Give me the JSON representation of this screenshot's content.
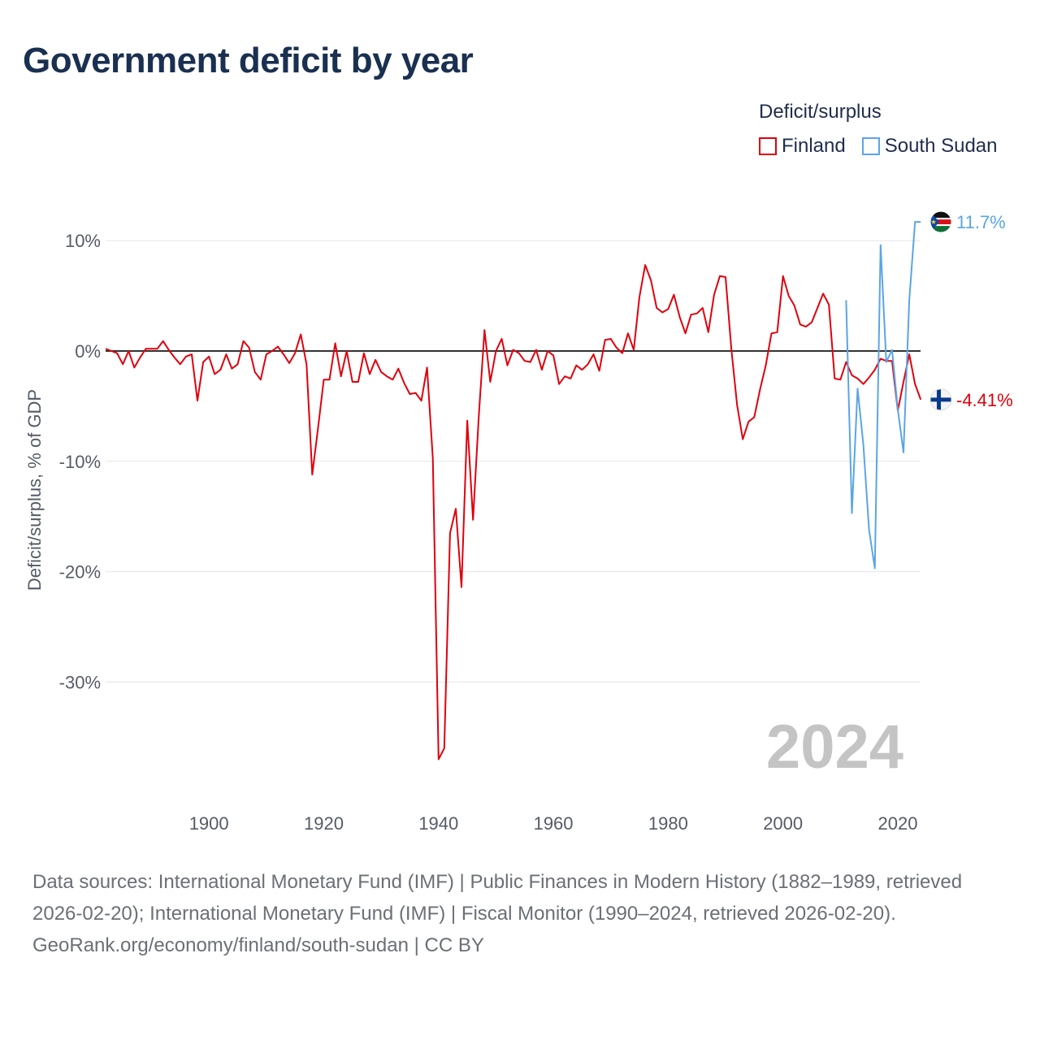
{
  "title": "Government deficit by year",
  "legend": {
    "title": "Deficit/surplus",
    "items": [
      {
        "label": "Finland",
        "color": "#e0000d"
      },
      {
        "label": "South Sudan",
        "color": "#5aa5e6"
      }
    ]
  },
  "footer": {
    "sources": "Data sources: International Monetary Fund (IMF) | Public Finances in Modern History (1882–1989, retrieved 2026-02-20); International Monetary Fund (IMF) | Fiscal Monitor (1990–2024, retrieved 2026-02-20).",
    "credit": "GeoRank.org/economy/finland/south-sudan | CC BY"
  },
  "chart_data": {
    "type": "line",
    "title": "Government deficit by year",
    "ylabel": "Deficit/surplus, % of GDP",
    "xlabel": "",
    "current_year": "2024",
    "xlim": [
      1882,
      2024
    ],
    "ylim": [
      -38,
      13
    ],
    "xticks": [
      1900,
      1920,
      1940,
      1960,
      1980,
      2000,
      2020
    ],
    "xtick_labels": [
      "1900",
      "1920",
      "1940",
      "1960",
      "1980",
      "2000",
      "2020"
    ],
    "yticks": [
      10,
      0,
      -10,
      -20,
      -30
    ],
    "ytick_labels": [
      "10%",
      "0%",
      "-10%",
      "-20%",
      "-30%"
    ],
    "zero_line": true,
    "series": [
      {
        "name": "Finland",
        "color": "#e0000d",
        "end_label": "-4.41%",
        "x": [
          1882,
          1883,
          1884,
          1885,
          1886,
          1887,
          1888,
          1889,
          1890,
          1891,
          1892,
          1893,
          1894,
          1895,
          1896,
          1897,
          1898,
          1899,
          1900,
          1901,
          1902,
          1903,
          1904,
          1905,
          1906,
          1907,
          1908,
          1909,
          1910,
          1911,
          1912,
          1913,
          1914,
          1915,
          1916,
          1917,
          1918,
          1919,
          1920,
          1921,
          1922,
          1923,
          1924,
          1925,
          1926,
          1927,
          1928,
          1929,
          1930,
          1931,
          1932,
          1933,
          1934,
          1935,
          1936,
          1937,
          1938,
          1939,
          1940,
          1941,
          1942,
          1943,
          1944,
          1945,
          1946,
          1947,
          1948,
          1949,
          1950,
          1951,
          1952,
          1953,
          1954,
          1955,
          1956,
          1957,
          1958,
          1959,
          1960,
          1961,
          1962,
          1963,
          1964,
          1965,
          1966,
          1967,
          1968,
          1969,
          1970,
          1971,
          1972,
          1973,
          1974,
          1975,
          1976,
          1977,
          1978,
          1979,
          1980,
          1981,
          1982,
          1983,
          1984,
          1985,
          1986,
          1987,
          1988,
          1989,
          1990,
          1991,
          1992,
          1993,
          1994,
          1995,
          1996,
          1997,
          1998,
          1999,
          2000,
          2001,
          2002,
          2003,
          2004,
          2005,
          2006,
          2007,
          2008,
          2009,
          2010,
          2011,
          2012,
          2013,
          2014,
          2015,
          2016,
          2017,
          2018,
          2019,
          2020,
          2021,
          2022,
          2023,
          2024
        ],
        "values": [
          0.2,
          0.0,
          -0.2,
          -1.2,
          0.0,
          -1.5,
          -0.6,
          0.2,
          0.2,
          0.2,
          0.9,
          0.1,
          -0.6,
          -1.2,
          -0.5,
          -0.3,
          -4.5,
          -1.0,
          -0.5,
          -2.1,
          -1.7,
          -0.3,
          -1.6,
          -1.2,
          0.9,
          0.3,
          -1.9,
          -2.6,
          -0.3,
          0.0,
          0.4,
          -0.3,
          -1.1,
          -0.2,
          1.5,
          -1.2,
          -11.2,
          -7.0,
          -2.6,
          -2.6,
          0.7,
          -2.3,
          0.0,
          -2.8,
          -2.8,
          -0.2,
          -2.1,
          -0.8,
          -1.9,
          -2.3,
          -2.6,
          -1.6,
          -2.9,
          -3.9,
          -3.8,
          -4.5,
          -1.5,
          -9.7,
          -37.0,
          -36.0,
          -16.5,
          -14.3,
          -21.4,
          -6.3,
          -15.3,
          -6.0,
          1.9,
          -2.8,
          0.0,
          1.1,
          -1.3,
          0.1,
          -0.2,
          -0.9,
          -1.0,
          0.1,
          -1.7,
          0.0,
          -0.4,
          -3.0,
          -2.3,
          -2.5,
          -1.3,
          -1.7,
          -1.2,
          -0.3,
          -1.8,
          1.0,
          1.1,
          0.3,
          -0.2,
          1.6,
          0.1,
          4.9,
          7.8,
          6.4,
          3.9,
          3.5,
          3.8,
          5.1,
          3.1,
          1.6,
          3.3,
          3.4,
          3.9,
          1.7,
          5.1,
          6.8,
          6.7,
          0.2,
          -4.9,
          -8.0,
          -6.4,
          -6.0,
          -3.5,
          -1.3,
          1.6,
          1.7,
          6.8,
          5.0,
          4.1,
          2.4,
          2.2,
          2.6,
          3.9,
          5.2,
          4.2,
          -2.5,
          -2.6,
          -1.0,
          -2.2,
          -2.5,
          -3.0,
          -2.4,
          -1.7,
          -0.7,
          -0.9,
          -0.9,
          -5.4,
          -2.8,
          -0.3,
          -3.0,
          -4.41
        ]
      },
      {
        "name": "South Sudan",
        "color": "#5aa5e6",
        "end_label": "11.7%",
        "x": [
          2011,
          2012,
          2013,
          2014,
          2015,
          2016,
          2017,
          2018,
          2019,
          2020,
          2021,
          2022,
          2023,
          2024
        ],
        "values": [
          4.6,
          -14.7,
          -3.4,
          -8.5,
          -16.2,
          -19.7,
          9.6,
          -1.0,
          0.1,
          -5.3,
          -9.2,
          4.6,
          11.7,
          11.7
        ]
      }
    ]
  }
}
